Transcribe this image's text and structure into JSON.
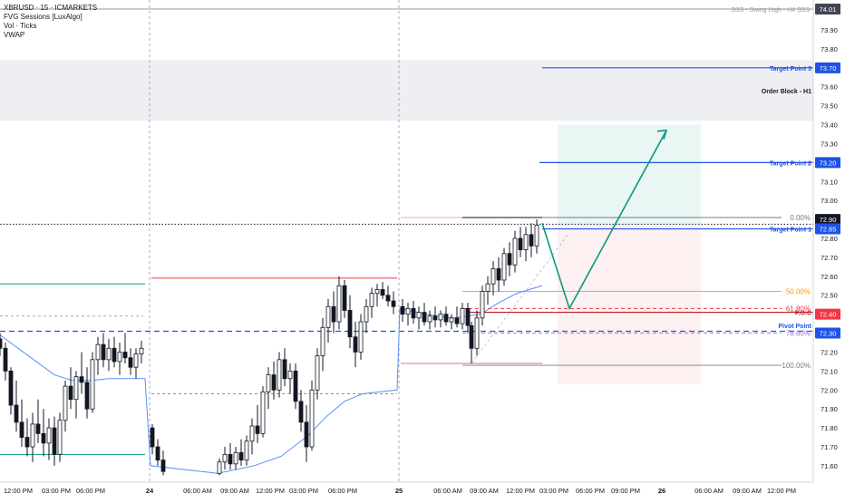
{
  "chart_data": {
    "type": "candlestick",
    "symbol_line": "XBRUSD · 15 · ICMARKETS",
    "indicators": [
      "FVG Sessions [LuxAlgo]",
      "Vol · Ticks",
      "VWAP"
    ],
    "price_axis": {
      "ylim": [
        71.55,
        74.05
      ],
      "ticks": [
        71.6,
        71.7,
        71.8,
        71.9,
        72.0,
        72.1,
        72.2,
        72.3,
        72.4,
        72.5,
        72.6,
        72.7,
        72.8,
        72.9,
        73.0,
        73.1,
        73.2,
        73.3,
        73.4,
        73.5,
        73.6,
        73.7,
        73.8,
        73.9
      ],
      "tick_labels": [
        "71.60",
        "71.70",
        "71.80",
        "71.90",
        "72.00",
        "72.10",
        "72.20",
        "72.30",
        "72.40",
        "72.50",
        "72.60",
        "72.70",
        "72.80",
        "72.90",
        "73.00",
        "73.10",
        "73.20",
        "73.30",
        "73.40",
        "73.50",
        "73.60",
        "73.70",
        "73.80",
        "73.90"
      ]
    },
    "time_axis": {
      "labels": [
        "12:00 PM",
        "03:00 PM",
        "06:00 PM",
        "24",
        "06:00 AM",
        "09:00 AM",
        "12:00 PM",
        "03:00 PM",
        "06:00 PM",
        "25",
        "06:00 AM",
        "09:00 AM",
        "12:00 PM",
        "03:00 PM",
        "06:00 PM",
        "09:00 PM",
        "26",
        "06:00 AM",
        "09:00 AM",
        "12:00 PM"
      ],
      "bold": [
        "24",
        "25",
        "26"
      ]
    },
    "price_tags": [
      {
        "value": 74.01,
        "label": "74.01",
        "color": "#434651"
      },
      {
        "value": 73.7,
        "label": "73.70",
        "color": "#1e53e5"
      },
      {
        "value": 73.2,
        "label": "73.20",
        "color": "#1e53e5"
      },
      {
        "value": 72.9,
        "label": "72.90",
        "color": "#131722"
      },
      {
        "value": 72.85,
        "label": "72.85",
        "color": "#1e53e5"
      },
      {
        "value": 72.4,
        "label": "72.40",
        "color": "#f23645"
      },
      {
        "value": 72.3,
        "label": "72.30",
        "color": "#1e53e5"
      }
    ],
    "annotations": {
      "swing_high": "SSS - Swing High - H4 SSS",
      "target_3": "Target Point 3",
      "target_2": "Target Point 2",
      "target_1": "Target Point 1",
      "order_block": "Order Block - H1",
      "poc": "P.O.C",
      "pivot": "Pivot Point",
      "fib": [
        {
          "label": "0.00%",
          "value": 72.91,
          "color": "#787b86"
        },
        {
          "label": "50.00%",
          "value": 72.52,
          "color": "#ff9800"
        },
        {
          "label": "61.80%",
          "value": 72.43,
          "color": "#f23645"
        },
        {
          "label": "78.60%",
          "value": 72.3,
          "color": "#9c6ade"
        },
        {
          "label": "100.00%",
          "value": 72.13,
          "color": "#787b86"
        }
      ]
    },
    "levels": {
      "order_block_zone": [
        73.42,
        73.74
      ],
      "target_3": 73.7,
      "target_2": 73.2,
      "target_1": 72.85,
      "poc": 72.41,
      "pivot": 72.31,
      "last_price": 72.875
    },
    "projection_path": [
      {
        "t": 598,
        "p": 72.88
      },
      {
        "t": 628,
        "p": 72.43
      },
      {
        "t": 735,
        "p": 73.37
      }
    ],
    "candle_series": [
      {
        "t": 0,
        "o": 72.27,
        "h": 72.3,
        "l": 72.18,
        "c": 72.22
      },
      {
        "t": 6,
        "o": 72.22,
        "h": 72.25,
        "l": 72.05,
        "c": 72.1
      },
      {
        "t": 12,
        "o": 72.1,
        "h": 72.12,
        "l": 71.87,
        "c": 71.92
      },
      {
        "t": 18,
        "o": 71.92,
        "h": 72.05,
        "l": 71.78,
        "c": 71.83
      },
      {
        "t": 24,
        "o": 71.83,
        "h": 71.95,
        "l": 71.7,
        "c": 71.75
      },
      {
        "t": 30,
        "o": 71.75,
        "h": 71.85,
        "l": 71.65,
        "c": 71.7
      },
      {
        "t": 36,
        "o": 71.7,
        "h": 71.88,
        "l": 71.62,
        "c": 71.82
      },
      {
        "t": 42,
        "o": 71.82,
        "h": 71.95,
        "l": 71.72,
        "c": 71.77
      },
      {
        "t": 48,
        "o": 71.77,
        "h": 71.9,
        "l": 71.65,
        "c": 71.72
      },
      {
        "t": 54,
        "o": 71.72,
        "h": 71.85,
        "l": 71.63,
        "c": 71.8
      },
      {
        "t": 60,
        "o": 71.8,
        "h": 71.86,
        "l": 71.6,
        "c": 71.66
      },
      {
        "t": 66,
        "o": 71.66,
        "h": 71.88,
        "l": 71.62,
        "c": 71.84
      },
      {
        "t": 72,
        "o": 71.84,
        "h": 72.05,
        "l": 71.78,
        "c": 72.02
      },
      {
        "t": 78,
        "o": 72.02,
        "h": 72.12,
        "l": 71.9,
        "c": 71.95
      },
      {
        "t": 84,
        "o": 71.95,
        "h": 72.1,
        "l": 71.85,
        "c": 72.07
      },
      {
        "t": 90,
        "o": 72.07,
        "h": 72.2,
        "l": 71.98,
        "c": 72.04
      },
      {
        "t": 96,
        "o": 72.04,
        "h": 72.12,
        "l": 71.85,
        "c": 71.9
      },
      {
        "t": 102,
        "o": 71.9,
        "h": 72.2,
        "l": 71.88,
        "c": 72.16
      },
      {
        "t": 108,
        "o": 72.16,
        "h": 72.28,
        "l": 72.08,
        "c": 72.24
      },
      {
        "t": 114,
        "o": 72.24,
        "h": 72.3,
        "l": 72.12,
        "c": 72.16
      },
      {
        "t": 120,
        "o": 72.16,
        "h": 72.27,
        "l": 72.1,
        "c": 72.22
      },
      {
        "t": 126,
        "o": 72.22,
        "h": 72.28,
        "l": 72.12,
        "c": 72.15
      },
      {
        "t": 132,
        "o": 72.15,
        "h": 72.25,
        "l": 72.08,
        "c": 72.2
      },
      {
        "t": 138,
        "o": 72.2,
        "h": 72.3,
        "l": 72.14,
        "c": 72.17
      },
      {
        "t": 144,
        "o": 72.17,
        "h": 72.22,
        "l": 72.08,
        "c": 72.12
      },
      {
        "t": 150,
        "o": 72.12,
        "h": 72.22,
        "l": 72.06,
        "c": 72.19
      },
      {
        "t": 156,
        "o": 72.19,
        "h": 72.26,
        "l": 72.14,
        "c": 72.22
      },
      {
        "t": 168,
        "o": 71.8,
        "h": 71.82,
        "l": 71.66,
        "c": 71.7
      },
      {
        "t": 174,
        "o": 71.7,
        "h": 71.74,
        "l": 71.6,
        "c": 71.63
      },
      {
        "t": 180,
        "o": 71.63,
        "h": 71.68,
        "l": 71.55,
        "c": 71.57
      },
      {
        "t": 242,
        "o": 71.56,
        "h": 71.64,
        "l": 71.55,
        "c": 71.62
      },
      {
        "t": 248,
        "o": 71.62,
        "h": 71.7,
        "l": 71.58,
        "c": 71.66
      },
      {
        "t": 254,
        "o": 71.66,
        "h": 71.72,
        "l": 71.58,
        "c": 71.61
      },
      {
        "t": 260,
        "o": 71.61,
        "h": 71.7,
        "l": 71.58,
        "c": 71.67
      },
      {
        "t": 266,
        "o": 71.67,
        "h": 71.74,
        "l": 71.6,
        "c": 71.63
      },
      {
        "t": 272,
        "o": 71.63,
        "h": 71.76,
        "l": 71.6,
        "c": 71.73
      },
      {
        "t": 278,
        "o": 71.73,
        "h": 71.85,
        "l": 71.66,
        "c": 71.81
      },
      {
        "t": 284,
        "o": 71.81,
        "h": 71.92,
        "l": 71.72,
        "c": 71.77
      },
      {
        "t": 290,
        "o": 71.77,
        "h": 72.02,
        "l": 71.75,
        "c": 71.99
      },
      {
        "t": 296,
        "o": 71.99,
        "h": 72.12,
        "l": 71.9,
        "c": 72.08
      },
      {
        "t": 302,
        "o": 72.08,
        "h": 72.15,
        "l": 71.95,
        "c": 72.0
      },
      {
        "t": 308,
        "o": 72.0,
        "h": 72.2,
        "l": 71.96,
        "c": 72.16
      },
      {
        "t": 314,
        "o": 72.16,
        "h": 72.22,
        "l": 72.02,
        "c": 72.06
      },
      {
        "t": 320,
        "o": 72.06,
        "h": 72.14,
        "l": 71.98,
        "c": 72.1
      },
      {
        "t": 326,
        "o": 72.1,
        "h": 72.14,
        "l": 71.9,
        "c": 71.94
      },
      {
        "t": 332,
        "o": 71.94,
        "h": 72.0,
        "l": 71.78,
        "c": 71.83
      },
      {
        "t": 338,
        "o": 71.83,
        "h": 71.92,
        "l": 71.62,
        "c": 71.7
      },
      {
        "t": 344,
        "o": 71.7,
        "h": 72.05,
        "l": 71.68,
        "c": 72.0
      },
      {
        "t": 350,
        "o": 72.0,
        "h": 72.22,
        "l": 71.95,
        "c": 72.18
      },
      {
        "t": 356,
        "o": 72.18,
        "h": 72.38,
        "l": 72.1,
        "c": 72.33
      },
      {
        "t": 362,
        "o": 72.33,
        "h": 72.48,
        "l": 72.25,
        "c": 72.44
      },
      {
        "t": 368,
        "o": 72.44,
        "h": 72.52,
        "l": 72.3,
        "c": 72.36
      },
      {
        "t": 374,
        "o": 72.36,
        "h": 72.6,
        "l": 72.32,
        "c": 72.55
      },
      {
        "t": 380,
        "o": 72.55,
        "h": 72.58,
        "l": 72.38,
        "c": 72.42
      },
      {
        "t": 386,
        "o": 72.42,
        "h": 72.5,
        "l": 72.22,
        "c": 72.28
      },
      {
        "t": 392,
        "o": 72.28,
        "h": 72.36,
        "l": 72.12,
        "c": 72.2
      },
      {
        "t": 398,
        "o": 72.2,
        "h": 72.4,
        "l": 72.16,
        "c": 72.36
      },
      {
        "t": 404,
        "o": 72.36,
        "h": 72.48,
        "l": 72.3,
        "c": 72.44
      },
      {
        "t": 410,
        "o": 72.44,
        "h": 72.54,
        "l": 72.38,
        "c": 72.51
      },
      {
        "t": 416,
        "o": 72.51,
        "h": 72.56,
        "l": 72.44,
        "c": 72.53
      },
      {
        "t": 422,
        "o": 72.53,
        "h": 72.57,
        "l": 72.48,
        "c": 72.5
      },
      {
        "t": 428,
        "o": 72.5,
        "h": 72.55,
        "l": 72.44,
        "c": 72.47
      },
      {
        "t": 434,
        "o": 72.47,
        "h": 72.52,
        "l": 72.4,
        "c": 72.44
      },
      {
        "t": 444,
        "o": 72.44,
        "h": 72.48,
        "l": 72.36,
        "c": 72.4
      },
      {
        "t": 450,
        "o": 72.4,
        "h": 72.46,
        "l": 72.34,
        "c": 72.43
      },
      {
        "t": 456,
        "o": 72.43,
        "h": 72.47,
        "l": 72.35,
        "c": 72.38
      },
      {
        "t": 462,
        "o": 72.38,
        "h": 72.44,
        "l": 72.32,
        "c": 72.41
      },
      {
        "t": 468,
        "o": 72.41,
        "h": 72.46,
        "l": 72.34,
        "c": 72.36
      },
      {
        "t": 474,
        "o": 72.36,
        "h": 72.42,
        "l": 72.32,
        "c": 72.39
      },
      {
        "t": 480,
        "o": 72.39,
        "h": 72.44,
        "l": 72.33,
        "c": 72.37
      },
      {
        "t": 486,
        "o": 72.37,
        "h": 72.42,
        "l": 72.33,
        "c": 72.4
      },
      {
        "t": 492,
        "o": 72.4,
        "h": 72.44,
        "l": 72.34,
        "c": 72.36
      },
      {
        "t": 498,
        "o": 72.36,
        "h": 72.4,
        "l": 72.32,
        "c": 72.38
      },
      {
        "t": 504,
        "o": 72.38,
        "h": 72.44,
        "l": 72.33,
        "c": 72.35
      },
      {
        "t": 510,
        "o": 72.35,
        "h": 72.46,
        "l": 72.32,
        "c": 72.43
      },
      {
        "t": 516,
        "o": 72.43,
        "h": 72.46,
        "l": 72.3,
        "c": 72.34
      },
      {
        "t": 520,
        "o": 72.34,
        "h": 72.36,
        "l": 72.14,
        "c": 72.22
      },
      {
        "t": 526,
        "o": 72.22,
        "h": 72.42,
        "l": 72.18,
        "c": 72.38
      },
      {
        "t": 532,
        "o": 72.38,
        "h": 72.55,
        "l": 72.34,
        "c": 72.52
      },
      {
        "t": 538,
        "o": 72.52,
        "h": 72.6,
        "l": 72.45,
        "c": 72.56
      },
      {
        "t": 544,
        "o": 72.56,
        "h": 72.68,
        "l": 72.5,
        "c": 72.64
      },
      {
        "t": 550,
        "o": 72.64,
        "h": 72.7,
        "l": 72.52,
        "c": 72.58
      },
      {
        "t": 556,
        "o": 72.58,
        "h": 72.75,
        "l": 72.55,
        "c": 72.72
      },
      {
        "t": 562,
        "o": 72.72,
        "h": 72.78,
        "l": 72.6,
        "c": 72.66
      },
      {
        "t": 568,
        "o": 72.66,
        "h": 72.84,
        "l": 72.62,
        "c": 72.8
      },
      {
        "t": 574,
        "o": 72.8,
        "h": 72.86,
        "l": 72.7,
        "c": 72.74
      },
      {
        "t": 580,
        "o": 72.74,
        "h": 72.86,
        "l": 72.68,
        "c": 72.82
      },
      {
        "t": 586,
        "o": 72.82,
        "h": 72.88,
        "l": 72.7,
        "c": 72.76
      },
      {
        "t": 592,
        "o": 72.76,
        "h": 72.9,
        "l": 72.72,
        "c": 72.87
      }
    ],
    "vwap_series": [
      {
        "t": 0,
        "p": 72.29
      },
      {
        "t": 20,
        "p": 72.22
      },
      {
        "t": 40,
        "p": 72.15
      },
      {
        "t": 60,
        "p": 72.08
      },
      {
        "t": 80,
        "p": 72.05
      },
      {
        "t": 100,
        "p": 72.05
      },
      {
        "t": 120,
        "p": 72.06
      },
      {
        "t": 140,
        "p": 72.06
      },
      {
        "t": 160,
        "p": 72.06
      },
      {
        "t": 166,
        "p": 71.6
      },
      {
        "t": 240,
        "p": 71.56
      },
      {
        "t": 280,
        "p": 71.6
      },
      {
        "t": 310,
        "p": 71.65
      },
      {
        "t": 340,
        "p": 71.76
      },
      {
        "t": 360,
        "p": 71.86
      },
      {
        "t": 380,
        "p": 71.94
      },
      {
        "t": 400,
        "p": 71.98
      },
      {
        "t": 438,
        "p": 72.0
      },
      {
        "t": 441,
        "p": 72.43
      },
      {
        "t": 470,
        "p": 72.4
      },
      {
        "t": 500,
        "p": 72.38
      },
      {
        "t": 530,
        "p": 72.4
      },
      {
        "t": 550,
        "p": 72.46
      },
      {
        "t": 570,
        "p": 72.51
      },
      {
        "t": 598,
        "p": 72.55
      }
    ],
    "axis_bounds": {
      "t_min": 0,
      "t_max": 897
    }
  }
}
